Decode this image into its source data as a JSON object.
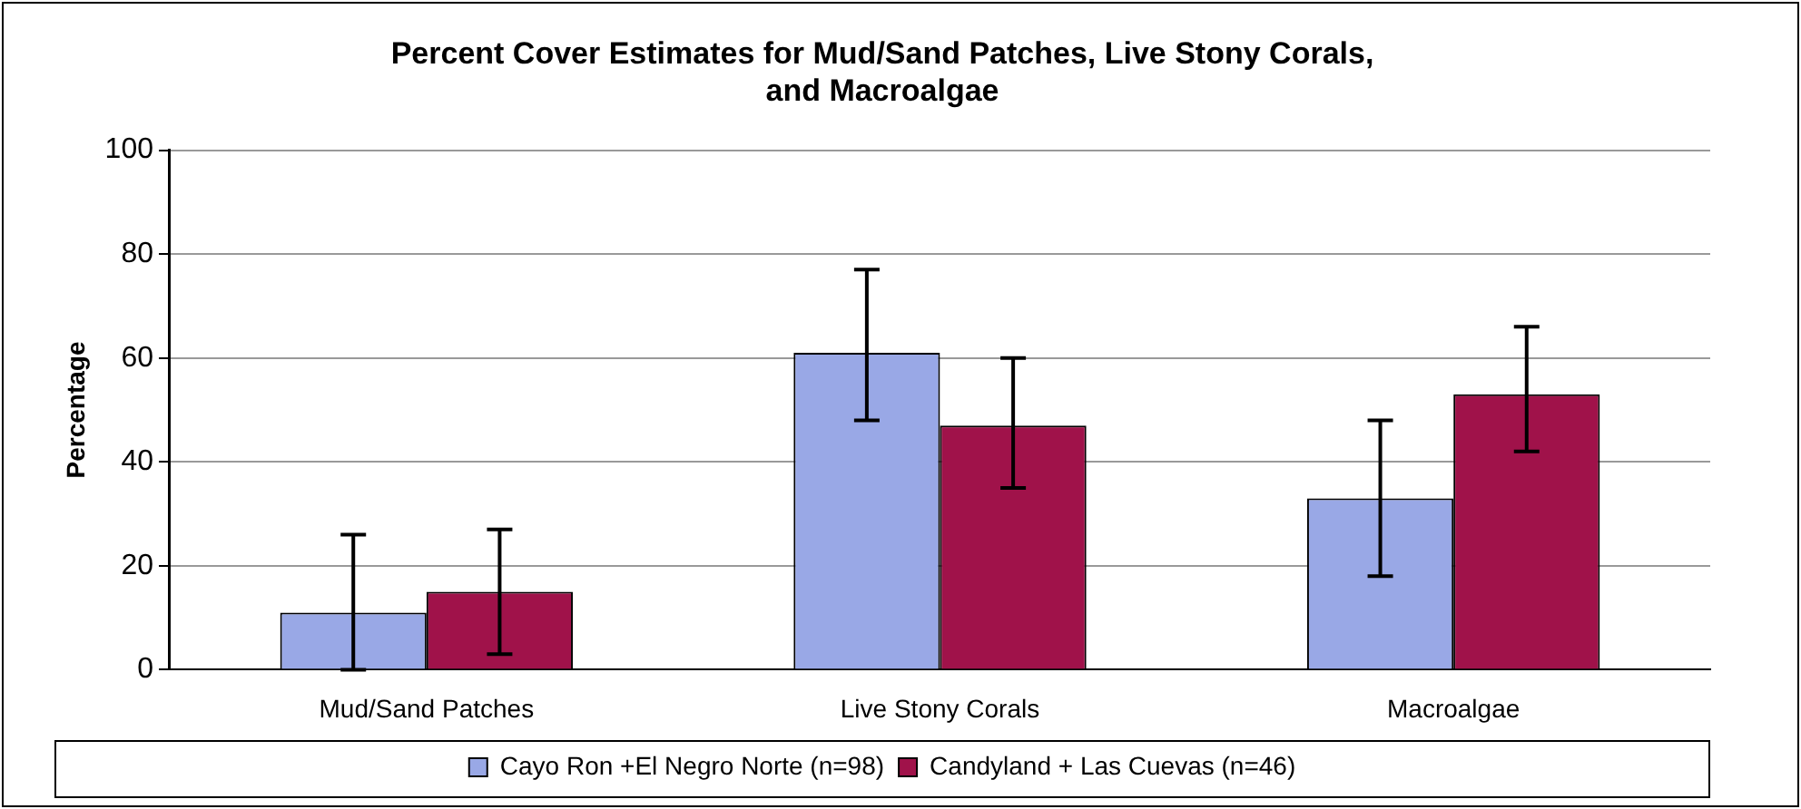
{
  "chart_data": {
    "type": "bar",
    "title": "Percent Cover Estimates for Mud/Sand Patches, Live Stony Corals, and Macroalgae",
    "ylabel": "Percentage",
    "categories": [
      "Mud/Sand Patches",
      "Live Stony Corals",
      "Macroalgae"
    ],
    "series": [
      {
        "name": "Cayo Ron +El Negro Norte (n=98)",
        "color": "#99a8e6",
        "values": [
          11,
          61,
          33
        ],
        "errors": [
          [
            0,
            26
          ],
          [
            48,
            77
          ],
          [
            18,
            48
          ]
        ]
      },
      {
        "name": "Candyland + Las Cuevas (n=46)",
        "color": "#a0124a",
        "values": [
          15,
          47,
          53
        ],
        "errors": [
          [
            3,
            27
          ],
          [
            35,
            60
          ],
          [
            42,
            66
          ]
        ]
      }
    ],
    "ylim": [
      0,
      100
    ],
    "yticks": [
      0,
      20,
      40,
      60,
      80,
      100
    ],
    "grid": "y",
    "legend": "bottom"
  }
}
